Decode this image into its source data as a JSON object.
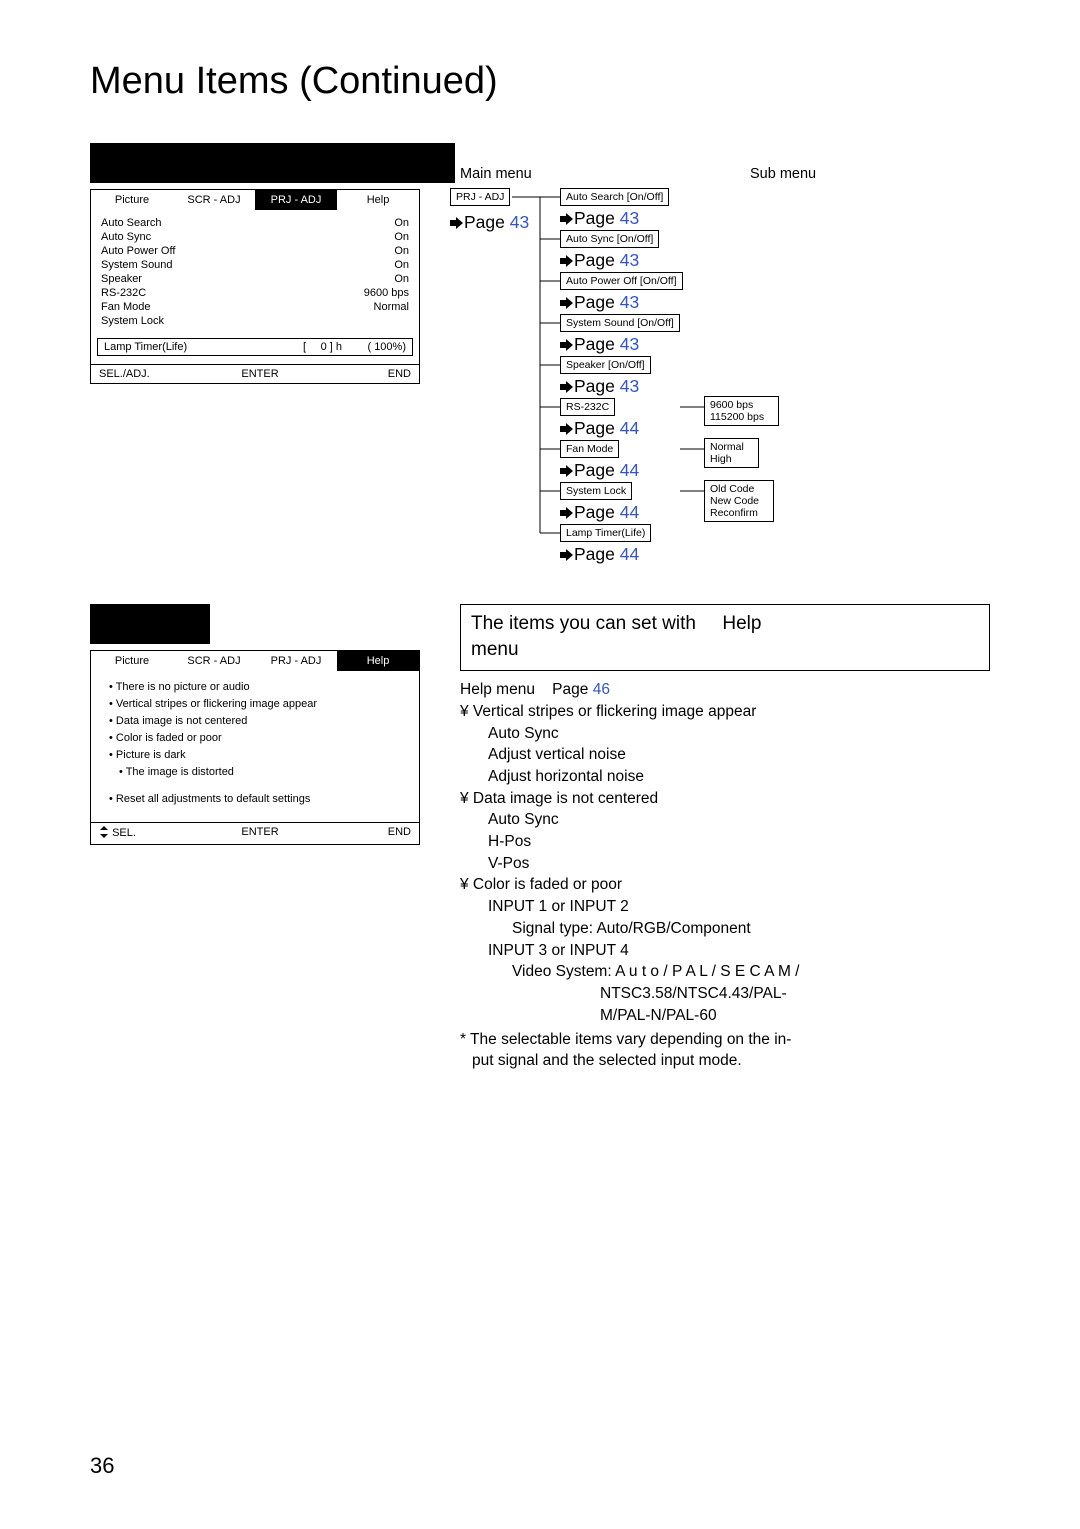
{
  "title": "Menu Items (Continued)",
  "page_number": "36",
  "link_color": "#3355cc",
  "osd_prj": {
    "tabs": [
      "Picture",
      "SCR - ADJ",
      "PRJ - ADJ",
      "Help"
    ],
    "selected_tab_index": 2,
    "rows": [
      {
        "label": "Auto Search",
        "value": "On"
      },
      {
        "label": "Auto Sync",
        "value": "On"
      },
      {
        "label": "Auto Power Off",
        "value": "On"
      },
      {
        "label": "System Sound",
        "value": "On"
      },
      {
        "label": "Speaker",
        "value": "On"
      },
      {
        "label": "RS-232C",
        "value": "9600 bps"
      },
      {
        "label": "Fan Mode",
        "value": "Normal"
      },
      {
        "label": "System Lock",
        "value": ""
      }
    ],
    "lamp": {
      "label": "Lamp Timer(Life)",
      "hours": "0 ] h",
      "pct": "( 100%)",
      "bracket": "["
    },
    "footer": [
      "SEL./ADJ.",
      "ENTER",
      "END"
    ]
  },
  "osd_help": {
    "tabs": [
      "Picture",
      "SCR - ADJ",
      "PRJ - ADJ",
      "Help"
    ],
    "selected_tab_index": 3,
    "items": [
      "There is no picture or audio",
      "Vertical stripes or flickering image appear",
      "Data image is not centered",
      "Color is faded or poor",
      "Picture is dark",
      "The image is distorted"
    ],
    "reset": "Reset all adjustments to default settings",
    "footer": [
      "SEL.",
      "ENTER",
      "END"
    ]
  },
  "diagram": {
    "main_menu_label": "Main menu",
    "sub_menu_label": "Sub menu",
    "root": "PRJ - ADJ",
    "root_page": {
      "text": "Page",
      "num": "43"
    },
    "items": [
      {
        "label": "Auto Search [On/Off]",
        "page_text": "Page",
        "page_num": "43",
        "sub": null
      },
      {
        "label": "Auto Sync [On/Off]",
        "page_text": "Page",
        "page_num": "43",
        "sub": null
      },
      {
        "label": "Auto Power Off [On/Off]",
        "page_text": "Page",
        "page_num": "43",
        "sub": null
      },
      {
        "label": "System Sound [On/Off]",
        "page_text": "Page",
        "page_num": "43",
        "sub": null
      },
      {
        "label": "Speaker [On/Off]",
        "page_text": "Page",
        "page_num": "43",
        "sub": null
      },
      {
        "label": "RS-232C",
        "page_text": "Page",
        "page_num": "44",
        "sub": [
          "9600 bps",
          "115200 bps"
        ]
      },
      {
        "label": "Fan Mode",
        "page_text": "Page",
        "page_num": "44",
        "sub": [
          "Normal",
          "High"
        ]
      },
      {
        "label": "System Lock",
        "page_text": "Page",
        "page_num": "44",
        "sub": [
          "Old Code",
          "New Code",
          "Reconfirm"
        ]
      },
      {
        "label": "Lamp Timer(Life)",
        "page_text": "Page",
        "page_num": "44",
        "sub": null
      }
    ]
  },
  "help_info": {
    "title_line1": "The items you can set with",
    "title_line2": "Help",
    "title_line3": "menu",
    "menu_line_a": "Help  menu",
    "menu_line_b": "Page",
    "menu_line_c": "46",
    "yen": "¥",
    "sections": [
      {
        "head": "Vertical stripes or flickering image appear",
        "lines": [
          "Auto Sync",
          "Adjust vertical noise",
          "Adjust horizontal noise"
        ]
      },
      {
        "head": "Data image is not centered",
        "lines": [
          "Auto Sync",
          "H-Pos",
          "V-Pos"
        ]
      },
      {
        "head": "Color is faded or poor",
        "lines": []
      }
    ],
    "color_block": {
      "l1": "INPUT 1 or INPUT 2",
      "l2": "Signal type: Auto/RGB/Component",
      "l3": "INPUT 3 or INPUT 4",
      "l4": "Video System: A u t o / P A L / S E C A M /",
      "l5": "NTSC3.58/NTSC4.43/PAL-",
      "l6": "M/PAL-N/PAL-60"
    },
    "note_l1": "* The selectable items vary depending on the in-",
    "note_l2": "put signal and the selected input mode."
  }
}
